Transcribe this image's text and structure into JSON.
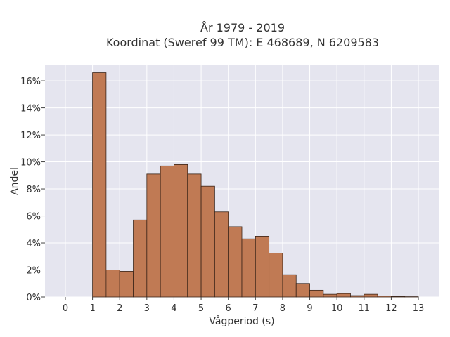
{
  "chart_data": {
    "type": "bar",
    "title_line1": "År 1979 - 2019",
    "title_line2": "Koordinat (Sweref 99 TM): E 468689, N 6209583",
    "xlabel": "Vågperiod (s)",
    "ylabel": "Andel",
    "bin_width": 0.5,
    "bins": [
      {
        "x0": 0.0,
        "value": 0.0
      },
      {
        "x0": 0.5,
        "value": 0.0
      },
      {
        "x0": 1.0,
        "value": 16.6
      },
      {
        "x0": 1.5,
        "value": 2.0
      },
      {
        "x0": 2.0,
        "value": 1.9
      },
      {
        "x0": 2.5,
        "value": 5.7
      },
      {
        "x0": 3.0,
        "value": 9.1
      },
      {
        "x0": 3.5,
        "value": 9.7
      },
      {
        "x0": 4.0,
        "value": 9.8
      },
      {
        "x0": 4.5,
        "value": 9.1
      },
      {
        "x0": 5.0,
        "value": 8.2
      },
      {
        "x0": 5.5,
        "value": 6.3
      },
      {
        "x0": 6.0,
        "value": 5.2
      },
      {
        "x0": 6.5,
        "value": 4.3
      },
      {
        "x0": 7.0,
        "value": 4.5
      },
      {
        "x0": 7.5,
        "value": 3.25
      },
      {
        "x0": 8.0,
        "value": 1.65
      },
      {
        "x0": 8.5,
        "value": 1.0
      },
      {
        "x0": 9.0,
        "value": 0.5
      },
      {
        "x0": 9.5,
        "value": 0.2
      },
      {
        "x0": 10.0,
        "value": 0.25
      },
      {
        "x0": 10.5,
        "value": 0.1
      },
      {
        "x0": 11.0,
        "value": 0.2
      },
      {
        "x0": 11.5,
        "value": 0.08
      },
      {
        "x0": 12.0,
        "value": 0.03
      },
      {
        "x0": 12.5,
        "value": 0.02
      }
    ],
    "xlim": [
      -0.75,
      13.75
    ],
    "ylim": [
      0,
      17.2
    ],
    "x_ticks": [
      0,
      1,
      2,
      3,
      4,
      5,
      6,
      7,
      8,
      9,
      10,
      11,
      12,
      13
    ],
    "y_ticks": [
      0,
      2,
      4,
      6,
      8,
      10,
      12,
      14,
      16
    ],
    "y_tick_suffix": "%",
    "grid": true,
    "colors": {
      "bar_fill": "#c07a54",
      "bar_stroke": "#3a2418",
      "plot_bg": "#e5e5ef",
      "grid": "#ffffff"
    }
  }
}
